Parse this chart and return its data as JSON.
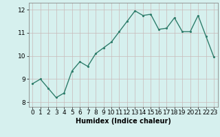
{
  "x": [
    0,
    1,
    2,
    3,
    4,
    5,
    6,
    7,
    8,
    9,
    10,
    11,
    12,
    13,
    14,
    15,
    16,
    17,
    18,
    19,
    20,
    21,
    22,
    23
  ],
  "y": [
    8.8,
    9.0,
    8.6,
    8.2,
    8.4,
    9.35,
    9.75,
    9.55,
    10.1,
    10.35,
    10.6,
    11.05,
    11.5,
    11.95,
    11.75,
    11.8,
    11.15,
    11.2,
    11.65,
    11.05,
    11.05,
    11.75,
    10.85,
    9.95
  ],
  "line_color": "#2e7d6b",
  "bg_color": "#d6f0ee",
  "grid_color": "#c9b8b8",
  "xlabel": "Humidex (Indice chaleur)",
  "ylim": [
    7.8,
    12.3
  ],
  "xlim": [
    -0.5,
    23.5
  ],
  "yticks": [
    8,
    9,
    10,
    11,
    12
  ],
  "xticks": [
    0,
    1,
    2,
    3,
    4,
    5,
    6,
    7,
    8,
    9,
    10,
    11,
    12,
    13,
    14,
    15,
    16,
    17,
    18,
    19,
    20,
    21,
    22,
    23
  ],
  "linewidth": 1.0,
  "markersize": 2.5,
  "xlabel_fontsize": 7.0,
  "tick_fontsize": 6.5
}
